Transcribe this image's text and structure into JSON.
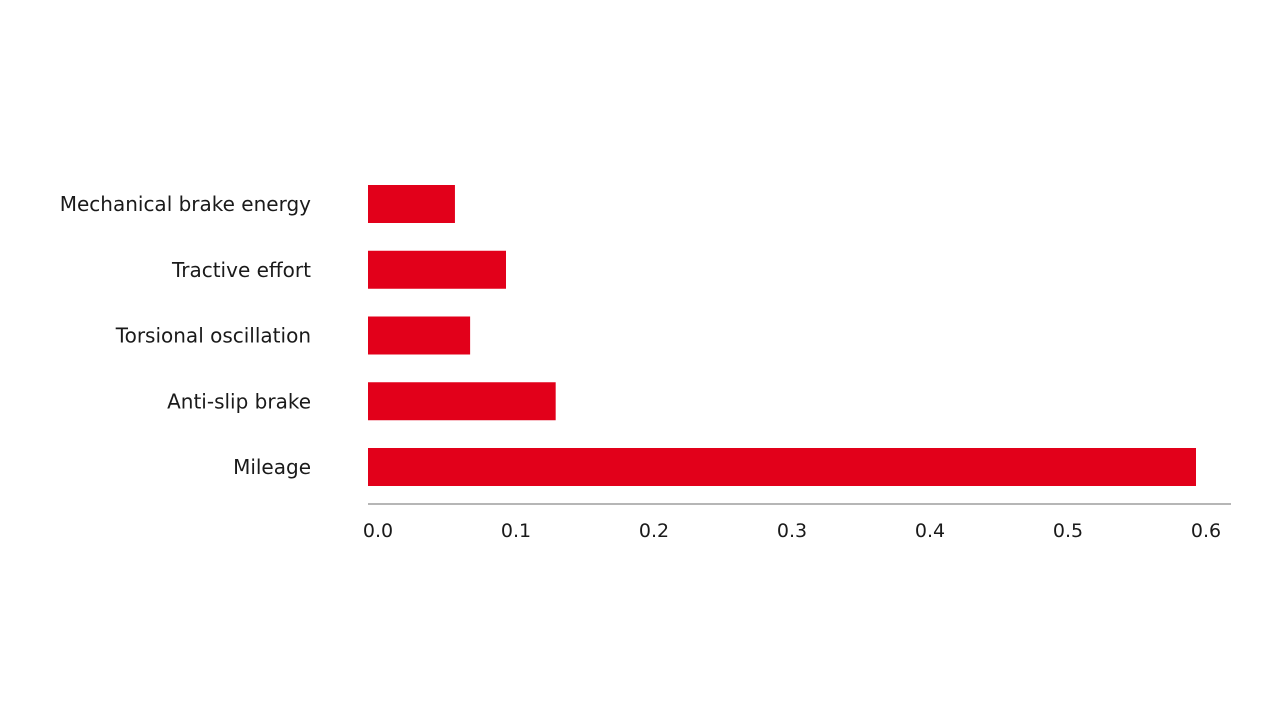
{
  "chart_data": {
    "type": "bar",
    "orientation": "horizontal",
    "categories": [
      "Mechanical brake energy",
      "Tractive effort",
      "Torsional oscillation",
      "Anti-slip brake",
      "Mileage"
    ],
    "values": [
      0.063,
      0.1,
      0.074,
      0.136,
      0.6
    ],
    "xlim": [
      0,
      0.6
    ],
    "xticks": [
      "0.0",
      "0.1",
      "0.2",
      "0.3",
      "0.4",
      "0.5",
      "0.6"
    ],
    "grid": false,
    "bar_color": "#e2001a",
    "axis_color": "#9e9e9e"
  }
}
